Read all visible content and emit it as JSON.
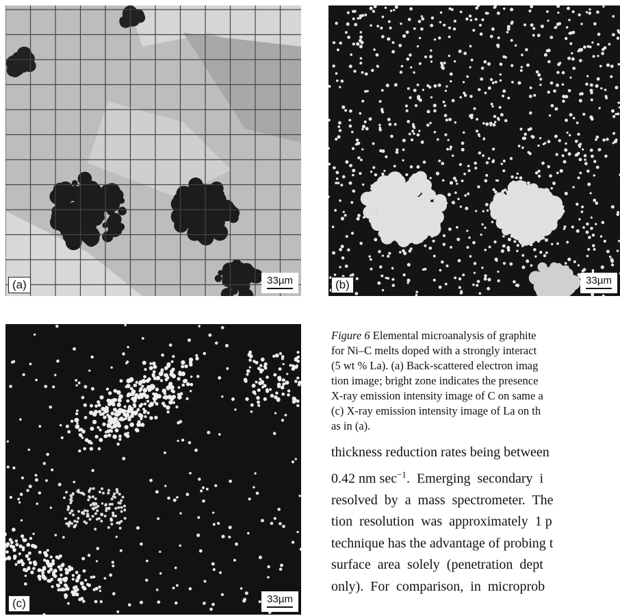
{
  "panels": [
    {
      "label": "(a)",
      "scale": "33µm"
    },
    {
      "label": "(b)",
      "scale": "33µm"
    },
    {
      "label": "(c)",
      "scale": "33µm"
    }
  ],
  "caption": {
    "label": "Figure 6",
    "lines": [
      " Elemental microanalysis of graphite",
      "for Ni–C melts doped with a strongly interact",
      "(5 wt % La). (a) Back-scattered electron imag",
      "tion image; bright zone indicates the presence",
      "X-ray emission intensity image of C on same a",
      "(c) X-ray emission intensity image of La on th",
      "as in (a)."
    ]
  },
  "body": {
    "lines": [
      "thickness reduction rates being between",
      {
        "before": "0.42 nm sec",
        "sup": "−1",
        "after": ".  Emerging  secondary  i"
      },
      "resolved  by  a  mass  spectrometer.  The",
      "tion  resolution  was  approximately  1 p",
      "technique has the advantage of probing t",
      "surface  area  solely  (penetration  dept",
      "only).  For  comparison,  in  microprob"
    ]
  }
}
